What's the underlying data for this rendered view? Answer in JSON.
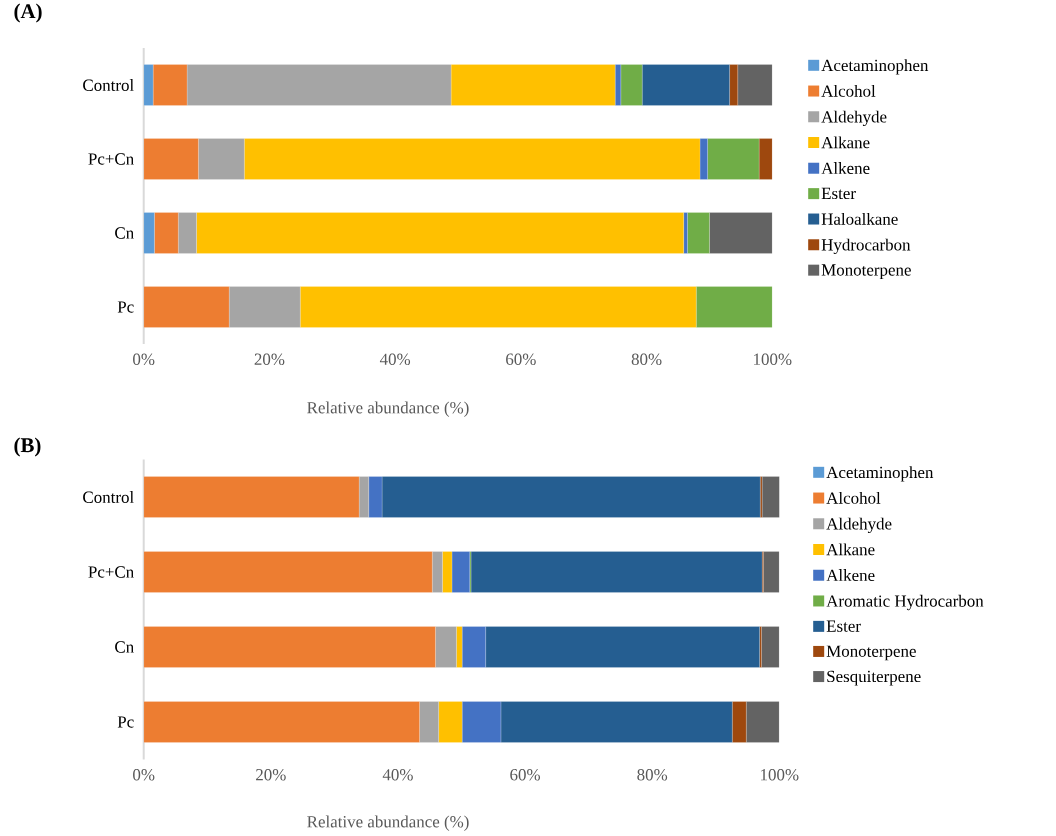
{
  "chart_data": [
    {
      "type": "bar",
      "orientation": "horizontal",
      "stacked": true,
      "title": "(A)",
      "xlabel": "Relative abundance (%)",
      "categories": [
        "Control",
        "Pc+Cn",
        "Cn",
        "Pc"
      ],
      "xlim": [
        0,
        100
      ],
      "xticks": [
        {
          "value": 0,
          "label": "0%"
        },
        {
          "value": 20,
          "label": "20%"
        },
        {
          "value": 40,
          "label": "40%"
        },
        {
          "value": 60,
          "label": "60%"
        },
        {
          "value": 80,
          "label": "80%"
        },
        {
          "value": 100,
          "label": "100%"
        }
      ],
      "legend": "right",
      "grid": false,
      "series": [
        {
          "name": "Acetaminophen",
          "color": "#5b9bd5",
          "values": [
            1.5,
            0,
            1.7,
            0
          ]
        },
        {
          "name": "Alcohol",
          "color": "#ed7d31",
          "values": [
            5.4,
            8.7,
            3.8,
            13.6
          ]
        },
        {
          "name": "Aldehyde",
          "color": "#a5a5a5",
          "values": [
            42.0,
            7.3,
            2.9,
            11.3
          ]
        },
        {
          "name": "Alkane",
          "color": "#ffc000",
          "values": [
            26.1,
            72.5,
            77.5,
            63.0
          ]
        },
        {
          "name": "Alkene",
          "color": "#4472c4",
          "values": [
            0.9,
            1.2,
            0.6,
            0
          ]
        },
        {
          "name": "Ester",
          "color": "#70ad47",
          "values": [
            3.4,
            8.2,
            3.5,
            12.1
          ]
        },
        {
          "name": "Haloalkane",
          "color": "#255e91",
          "values": [
            13.9,
            0,
            0,
            0
          ]
        },
        {
          "name": "Hydrocarbon",
          "color": "#9e480e",
          "values": [
            1.3,
            2.1,
            0,
            0
          ]
        },
        {
          "name": "Monoterpene",
          "color": "#636363",
          "values": [
            5.5,
            0,
            10.0,
            0
          ]
        }
      ]
    },
    {
      "type": "bar",
      "orientation": "horizontal",
      "stacked": true,
      "title": "(B)",
      "xlabel": "Relative abundance (%)",
      "categories": [
        "Control",
        "Pc+Cn",
        "Cn",
        "Pc"
      ],
      "xlim": [
        0,
        100
      ],
      "xticks": [
        {
          "value": 0,
          "label": "0%"
        },
        {
          "value": 20,
          "label": "20%"
        },
        {
          "value": 40,
          "label": "40%"
        },
        {
          "value": 60,
          "label": "60%"
        },
        {
          "value": 80,
          "label": "80%"
        },
        {
          "value": 100,
          "label": "100%"
        }
      ],
      "legend": "right",
      "grid": false,
      "series": [
        {
          "name": "Acetaminophen",
          "color": "#5b9bd5",
          "values": [
            0,
            0,
            0,
            0
          ]
        },
        {
          "name": "Alcohol",
          "color": "#ed7d31",
          "values": [
            33.9,
            45.4,
            45.9,
            43.4
          ]
        },
        {
          "name": "Aldehyde",
          "color": "#a5a5a5",
          "values": [
            1.5,
            1.6,
            3.3,
            3.0
          ]
        },
        {
          "name": "Alkane",
          "color": "#ffc000",
          "values": [
            0,
            1.5,
            0.9,
            3.7
          ]
        },
        {
          "name": "Alkene",
          "color": "#4472c4",
          "values": [
            2.1,
            2.8,
            3.7,
            6.1
          ]
        },
        {
          "name": "Aromatic Hydrocarbon",
          "color": "#70ad47",
          "values": [
            0,
            0.2,
            0,
            0
          ]
        },
        {
          "name": "Ester",
          "color": "#255e91",
          "values": [
            59.5,
            45.8,
            43.1,
            36.4
          ]
        },
        {
          "name": "Monoterpene",
          "color": "#9e480e",
          "values": [
            0.3,
            0.2,
            0.3,
            2.2
          ]
        },
        {
          "name": "Sesquiterpene",
          "color": "#636363",
          "values": [
            2.8,
            2.5,
            2.8,
            5.2
          ]
        }
      ]
    }
  ]
}
